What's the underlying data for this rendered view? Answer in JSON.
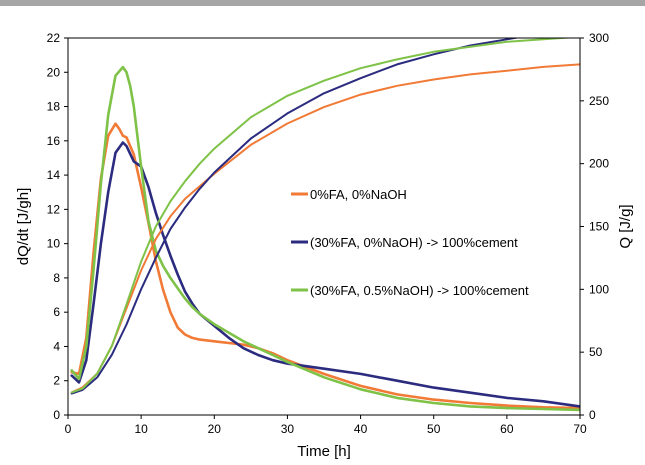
{
  "chart_data": {
    "type": "line",
    "title": "",
    "xlabel": "Time [h]",
    "ylabel_left": "dQ/dt [J/gh]",
    "ylabel_right": "Q [J/g]",
    "xlim": [
      0,
      70
    ],
    "ylim_left": [
      0,
      22
    ],
    "ylim_right": [
      0,
      300
    ],
    "x_ticks": [
      0,
      10,
      20,
      30,
      40,
      50,
      60,
      70
    ],
    "y_ticks_left": [
      0,
      2,
      4,
      6,
      8,
      10,
      12,
      14,
      16,
      18,
      20,
      22
    ],
    "y_ticks_right": [
      0,
      50,
      100,
      150,
      200,
      250,
      300
    ],
    "grid": false,
    "legend_position": "right-center",
    "series": [
      {
        "name": "0%FA, 0%NaOH",
        "color": "#f07a36",
        "axis": "left",
        "x": [
          0.5,
          1.5,
          2.5,
          3.5,
          4.5,
          5.5,
          6.5,
          7,
          7.5,
          8,
          9,
          10,
          11,
          12,
          13,
          14,
          15,
          16,
          17,
          18,
          20,
          22,
          24,
          26,
          28,
          30,
          35,
          40,
          45,
          50,
          55,
          60,
          65,
          70
        ],
        "y": [
          2.5,
          2.4,
          4.5,
          9.5,
          13.8,
          16.3,
          17.0,
          16.7,
          16.3,
          16.2,
          15.2,
          13.3,
          11.2,
          9.0,
          7.3,
          6.0,
          5.1,
          4.7,
          4.5,
          4.4,
          4.3,
          4.2,
          4.1,
          3.9,
          3.6,
          3.2,
          2.4,
          1.7,
          1.2,
          0.9,
          0.7,
          0.55,
          0.45,
          0.4
        ]
      },
      {
        "name": "(30%FA, 0%NaOH) -> 100%cement",
        "color": "#2b2b7f",
        "axis": "left",
        "x": [
          0.5,
          1.5,
          2.5,
          3.5,
          4.5,
          5.5,
          6.5,
          7.5,
          8,
          9,
          10,
          11,
          12,
          13,
          14,
          15,
          16,
          17,
          18,
          20,
          22,
          24,
          26,
          28,
          30,
          35,
          40,
          45,
          50,
          55,
          60,
          65,
          70
        ],
        "y": [
          2.3,
          1.9,
          3.2,
          6.5,
          10.0,
          13.0,
          15.3,
          15.9,
          15.7,
          14.8,
          14.5,
          13.3,
          11.8,
          10.5,
          9.3,
          8.2,
          7.2,
          6.5,
          5.9,
          5.2,
          4.5,
          3.9,
          3.5,
          3.2,
          3.0,
          2.7,
          2.4,
          2.0,
          1.6,
          1.3,
          1.0,
          0.8,
          0.5
        ]
      },
      {
        "name": "(30%FA, 0.5%NaOH) -> 100%cement",
        "color": "#7ec247",
        "axis": "left",
        "x": [
          0.5,
          1.5,
          2.5,
          3.5,
          4.5,
          5.5,
          6.5,
          7.5,
          8,
          8.5,
          9,
          10,
          11,
          12,
          13,
          14,
          15,
          16,
          17,
          18,
          20,
          22,
          24,
          26,
          28,
          30,
          35,
          40,
          45,
          50,
          55,
          60,
          65,
          70
        ],
        "y": [
          2.6,
          2.1,
          4.0,
          8.5,
          13.5,
          17.5,
          19.8,
          20.3,
          20.0,
          19.2,
          18.0,
          14.5,
          11.3,
          9.6,
          8.7,
          8.0,
          7.4,
          6.8,
          6.3,
          5.9,
          5.3,
          4.8,
          4.3,
          3.9,
          3.5,
          3.1,
          2.2,
          1.5,
          1.0,
          0.7,
          0.5,
          0.4,
          0.35,
          0.3
        ]
      },
      {
        "name": "0%FA, 0%NaOH",
        "color": "#f07a36",
        "axis": "right",
        "x": [
          0.5,
          2,
          4,
          6,
          8,
          10,
          12,
          14,
          16,
          18,
          20,
          25,
          30,
          35,
          40,
          45,
          50,
          55,
          60,
          65,
          70
        ],
        "y": [
          18,
          22,
          33,
          55,
          85,
          115,
          140,
          158,
          172,
          182,
          192,
          215,
          232,
          245,
          255,
          262,
          267,
          271,
          274,
          277,
          279
        ]
      },
      {
        "name": "(30%FA, 0%NaOH) -> 100%cement",
        "color": "#2b2b7f",
        "axis": "right",
        "x": [
          0.5,
          2,
          4,
          6,
          8,
          10,
          12,
          14,
          16,
          18,
          20,
          25,
          30,
          35,
          40,
          45,
          50,
          55,
          60,
          65,
          70
        ],
        "y": [
          17,
          20,
          30,
          48,
          72,
          100,
          125,
          148,
          165,
          180,
          193,
          220,
          240,
          256,
          268,
          279,
          287,
          294,
          299,
          304,
          307
        ]
      },
      {
        "name": "(30%FA, 0.5%NaOH) -> 100%cement",
        "color": "#7ec247",
        "axis": "right",
        "x": [
          0.5,
          2,
          4,
          6,
          8,
          10,
          12,
          14,
          16,
          18,
          20,
          25,
          30,
          35,
          40,
          45,
          50,
          55,
          60,
          65,
          70
        ],
        "y": [
          18,
          21,
          33,
          55,
          88,
          122,
          150,
          170,
          186,
          200,
          212,
          237,
          254,
          266,
          276,
          283,
          289,
          293,
          297,
          299,
          301
        ]
      }
    ],
    "legend": [
      {
        "label": "0%FA, 0%NaOH",
        "color": "#f07a36"
      },
      {
        "label": "(30%FA, 0%NaOH) -> 100%cement",
        "color": "#2b2b7f"
      },
      {
        "label": "(30%FA, 0.5%NaOH) -> 100%cement",
        "color": "#7ec247"
      }
    ]
  }
}
